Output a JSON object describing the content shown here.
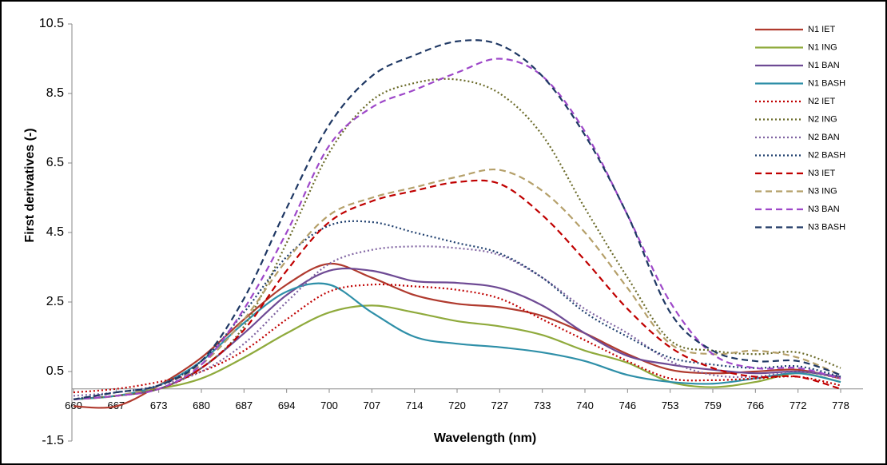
{
  "chart_data": {
    "type": "line",
    "x_label": "Wavelength (nm)",
    "y_label": "First derivatives (-)",
    "categories": [
      "660",
      "667",
      "673",
      "680",
      "687",
      "694",
      "700",
      "707",
      "714",
      "720",
      "727",
      "733",
      "740",
      "746",
      "753",
      "759",
      "766",
      "772",
      "778"
    ],
    "ylim": [
      -1.5,
      10.5
    ],
    "yticks": [
      -1.5,
      0.5,
      2.5,
      4.5,
      6.5,
      8.5,
      10.5
    ],
    "legend": "top-right",
    "series": [
      {
        "name": "N1 IET",
        "color": "#b03a2e",
        "style": "solid",
        "values": [
          -0.5,
          -0.5,
          0.1,
          0.9,
          2.0,
          3.0,
          3.6,
          3.2,
          2.7,
          2.45,
          2.35,
          2.1,
          1.6,
          1.0,
          0.55,
          0.45,
          0.5,
          0.55,
          0.3
        ]
      },
      {
        "name": "N1 ING",
        "color": "#8faa3c",
        "style": "solid",
        "values": [
          -0.3,
          -0.2,
          0.0,
          0.3,
          0.9,
          1.6,
          2.2,
          2.4,
          2.2,
          1.95,
          1.8,
          1.55,
          1.1,
          0.75,
          0.2,
          0.05,
          0.2,
          0.45,
          0.2
        ]
      },
      {
        "name": "N1 BAN",
        "color": "#6e4a94",
        "style": "solid",
        "values": [
          -0.3,
          -0.2,
          0.0,
          0.6,
          1.6,
          2.7,
          3.4,
          3.4,
          3.1,
          3.05,
          2.9,
          2.4,
          1.6,
          0.95,
          0.7,
          0.55,
          0.45,
          0.5,
          0.35
        ]
      },
      {
        "name": "N1 BASH",
        "color": "#2e8fa8",
        "style": "solid",
        "values": [
          -0.3,
          -0.2,
          0.1,
          0.8,
          1.9,
          2.8,
          3.0,
          2.2,
          1.5,
          1.3,
          1.2,
          1.05,
          0.8,
          0.4,
          0.2,
          0.15,
          0.3,
          0.45,
          0.2
        ]
      },
      {
        "name": "N2 IET",
        "color": "#c00000",
        "style": "dotted",
        "values": [
          -0.1,
          0.0,
          0.2,
          0.5,
          1.1,
          2.0,
          2.8,
          3.0,
          2.95,
          2.85,
          2.6,
          2.0,
          1.4,
          0.8,
          0.3,
          0.25,
          0.3,
          0.35,
          0.1
        ]
      },
      {
        "name": "N2 ING",
        "color": "#6b6b2a",
        "style": "dotted",
        "values": [
          -0.3,
          -0.2,
          0.0,
          0.6,
          1.8,
          4.2,
          6.8,
          8.3,
          8.8,
          8.9,
          8.5,
          7.3,
          5.2,
          3.2,
          1.4,
          1.1,
          1.0,
          1.05,
          0.6
        ]
      },
      {
        "name": "N2 BAN",
        "color": "#8064a2",
        "style": "dotted",
        "values": [
          -0.2,
          -0.1,
          0.1,
          0.5,
          1.3,
          2.5,
          3.6,
          4.0,
          4.1,
          4.05,
          3.85,
          3.2,
          2.3,
          1.6,
          0.8,
          0.4,
          0.35,
          0.5,
          0.3
        ]
      },
      {
        "name": "N2 BASH",
        "color": "#1f3f6e",
        "style": "dotted",
        "values": [
          -0.3,
          -0.1,
          0.1,
          0.8,
          2.2,
          3.8,
          4.7,
          4.8,
          4.5,
          4.2,
          3.9,
          3.2,
          2.2,
          1.5,
          0.9,
          0.7,
          0.6,
          0.65,
          0.35
        ]
      },
      {
        "name": "N3 IET",
        "color": "#c00000",
        "style": "dashed",
        "values": [
          -0.3,
          -0.2,
          0.0,
          0.6,
          1.7,
          3.4,
          4.8,
          5.4,
          5.7,
          5.95,
          5.9,
          5.0,
          3.7,
          2.3,
          1.2,
          0.6,
          0.35,
          0.35,
          0.0
        ]
      },
      {
        "name": "N3 ING",
        "color": "#b5a06a",
        "style": "dashed",
        "values": [
          -0.3,
          -0.2,
          0.1,
          0.7,
          2.0,
          3.7,
          5.0,
          5.5,
          5.8,
          6.1,
          6.3,
          5.7,
          4.5,
          2.9,
          1.3,
          1.0,
          1.1,
          0.9,
          0.4
        ]
      },
      {
        "name": "N3 BAN",
        "color": "#9e48c9",
        "style": "dashed",
        "values": [
          -0.3,
          -0.2,
          0.0,
          0.7,
          2.3,
          4.5,
          7.0,
          8.1,
          8.6,
          9.1,
          9.5,
          9.0,
          7.4,
          5.0,
          2.5,
          1.0,
          0.6,
          0.6,
          0.3
        ]
      },
      {
        "name": "N3 BASH",
        "color": "#1f3864",
        "style": "dashed",
        "values": [
          -0.3,
          -0.1,
          0.1,
          0.8,
          2.6,
          5.2,
          7.6,
          9.0,
          9.6,
          10.0,
          9.9,
          9.0,
          7.3,
          5.0,
          2.2,
          1.1,
          0.8,
          0.8,
          0.4
        ]
      }
    ]
  }
}
